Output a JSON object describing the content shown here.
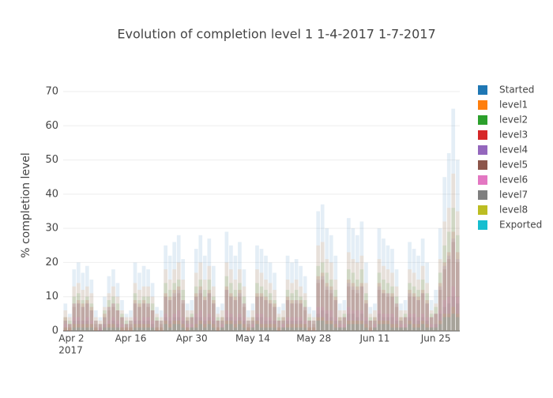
{
  "chart_data": {
    "type": "bar",
    "title": "Evolution of completion level 1 1-4-2017 1-7-2017",
    "y_label": "% completion level",
    "x": [
      "2017-04-01",
      "2017-04-02",
      "2017-04-03",
      "2017-04-04",
      "2017-04-05",
      "2017-04-06",
      "2017-04-07",
      "2017-04-08",
      "2017-04-09",
      "2017-04-10",
      "2017-04-11",
      "2017-04-12",
      "2017-04-13",
      "2017-04-14",
      "2017-04-15",
      "2017-04-16",
      "2017-04-17",
      "2017-04-18",
      "2017-04-19",
      "2017-04-20",
      "2017-04-21",
      "2017-04-22",
      "2017-04-23",
      "2017-04-24",
      "2017-04-25",
      "2017-04-26",
      "2017-04-27",
      "2017-04-28",
      "2017-04-29",
      "2017-04-30",
      "2017-05-01",
      "2017-05-02",
      "2017-05-03",
      "2017-05-04",
      "2017-05-05",
      "2017-05-06",
      "2017-05-07",
      "2017-05-08",
      "2017-05-09",
      "2017-05-10",
      "2017-05-11",
      "2017-05-12",
      "2017-05-13",
      "2017-05-14",
      "2017-05-15",
      "2017-05-16",
      "2017-05-17",
      "2017-05-18",
      "2017-05-19",
      "2017-05-20",
      "2017-05-21",
      "2017-05-22",
      "2017-05-23",
      "2017-05-24",
      "2017-05-25",
      "2017-05-26",
      "2017-05-27",
      "2017-05-28",
      "2017-05-29",
      "2017-05-30",
      "2017-05-31",
      "2017-06-01",
      "2017-06-02",
      "2017-06-03",
      "2017-06-04",
      "2017-06-05",
      "2017-06-06",
      "2017-06-07",
      "2017-06-08",
      "2017-06-09",
      "2017-06-10",
      "2017-06-11",
      "2017-06-12",
      "2017-06-13",
      "2017-06-14",
      "2017-06-15",
      "2017-06-16",
      "2017-06-17",
      "2017-06-18",
      "2017-06-19",
      "2017-06-20",
      "2017-06-21",
      "2017-06-22",
      "2017-06-23",
      "2017-06-24",
      "2017-06-25",
      "2017-06-26",
      "2017-06-27",
      "2017-06-28",
      "2017-06-29",
      "2017-06-30"
    ],
    "series": [
      {
        "name": "Started",
        "color": "#1f77b4",
        "values": [
          8,
          5,
          18,
          20,
          17,
          19,
          15,
          6,
          4,
          10,
          16,
          18,
          14,
          9,
          5,
          6,
          20,
          17,
          19,
          18,
          14,
          7,
          6,
          25,
          22,
          26,
          28,
          21,
          8,
          9,
          24,
          28,
          22,
          27,
          19,
          7,
          8,
          29,
          25,
          22,
          26,
          18,
          6,
          8,
          25,
          24,
          22,
          20,
          17,
          7,
          8,
          22,
          20,
          21,
          19,
          16,
          7,
          6,
          35,
          37,
          30,
          28,
          22,
          8,
          9,
          33,
          30,
          28,
          32,
          20,
          7,
          8,
          30,
          27,
          25,
          24,
          18,
          8,
          9,
          26,
          24,
          22,
          27,
          20,
          9,
          12,
          30,
          45,
          52,
          65,
          50
        ]
      },
      {
        "name": "level1",
        "color": "#ff7f0e",
        "values": [
          6,
          4,
          13,
          14,
          12,
          13,
          11,
          4,
          3,
          7,
          11,
          13,
          10,
          6,
          4,
          4,
          14,
          12,
          13,
          13,
          10,
          5,
          4,
          18,
          15,
          18,
          20,
          15,
          6,
          6,
          17,
          20,
          15,
          19,
          13,
          5,
          6,
          20,
          18,
          15,
          18,
          13,
          4,
          6,
          18,
          17,
          15,
          14,
          12,
          5,
          6,
          15,
          14,
          15,
          13,
          11,
          5,
          4,
          25,
          26,
          21,
          20,
          15,
          6,
          6,
          23,
          21,
          20,
          22,
          14,
          5,
          6,
          21,
          19,
          18,
          17,
          13,
          6,
          6,
          18,
          17,
          15,
          19,
          14,
          6,
          8,
          21,
          32,
          36,
          46,
          35
        ]
      },
      {
        "name": "level2",
        "color": "#2ca02c",
        "values": [
          4,
          3,
          10,
          11,
          9,
          10,
          8,
          3,
          2,
          6,
          9,
          10,
          8,
          5,
          3,
          3,
          11,
          9,
          10,
          10,
          8,
          4,
          3,
          14,
          12,
          14,
          15,
          12,
          4,
          5,
          13,
          15,
          12,
          15,
          10,
          4,
          4,
          16,
          14,
          12,
          14,
          10,
          3,
          4,
          14,
          13,
          12,
          11,
          9,
          4,
          4,
          12,
          11,
          12,
          10,
          9,
          4,
          3,
          19,
          20,
          17,
          15,
          12,
          4,
          5,
          18,
          17,
          15,
          18,
          11,
          4,
          4,
          17,
          15,
          14,
          13,
          10,
          4,
          5,
          14,
          13,
          12,
          15,
          11,
          5,
          7,
          17,
          25,
          29,
          36,
          28
        ]
      },
      {
        "name": "level3",
        "color": "#d62728",
        "values": [
          4,
          2,
          8,
          9,
          8,
          9,
          7,
          3,
          2,
          5,
          7,
          8,
          6,
          4,
          2,
          3,
          9,
          8,
          9,
          8,
          6,
          3,
          3,
          11,
          10,
          12,
          13,
          9,
          4,
          4,
          11,
          13,
          10,
          12,
          9,
          3,
          4,
          13,
          11,
          10,
          12,
          8,
          3,
          4,
          11,
          11,
          10,
          9,
          8,
          3,
          4,
          10,
          9,
          9,
          9,
          7,
          3,
          3,
          16,
          17,
          14,
          13,
          10,
          4,
          4,
          15,
          14,
          13,
          14,
          9,
          3,
          4,
          14,
          12,
          11,
          11,
          8,
          4,
          4,
          12,
          11,
          10,
          12,
          9,
          4,
          5,
          14,
          20,
          23,
          29,
          23
        ]
      },
      {
        "name": "level4",
        "color": "#9467bd",
        "values": [
          3,
          2,
          8,
          8,
          7,
          8,
          6,
          3,
          2,
          4,
          7,
          8,
          6,
          4,
          2,
          3,
          8,
          7,
          8,
          8,
          6,
          3,
          3,
          10,
          9,
          11,
          12,
          9,
          3,
          4,
          10,
          12,
          9,
          11,
          8,
          3,
          3,
          12,
          10,
          9,
          11,
          8,
          3,
          3,
          10,
          10,
          9,
          8,
          7,
          3,
          3,
          9,
          8,
          9,
          8,
          7,
          3,
          3,
          15,
          16,
          13,
          12,
          9,
          3,
          4,
          14,
          13,
          12,
          13,
          8,
          3,
          3,
          13,
          11,
          11,
          10,
          8,
          3,
          4,
          11,
          10,
          9,
          11,
          8,
          4,
          5,
          13,
          19,
          22,
          27,
          21
        ]
      },
      {
        "name": "level5",
        "color": "#8c564b",
        "values": [
          3,
          2,
          7,
          8,
          7,
          8,
          6,
          2,
          2,
          4,
          6,
          7,
          6,
          4,
          2,
          2,
          8,
          7,
          8,
          7,
          6,
          3,
          2,
          10,
          9,
          10,
          11,
          8,
          3,
          4,
          10,
          11,
          9,
          11,
          8,
          3,
          3,
          12,
          10,
          9,
          10,
          7,
          2,
          3,
          10,
          10,
          9,
          8,
          7,
          3,
          3,
          9,
          8,
          8,
          8,
          6,
          3,
          2,
          14,
          15,
          12,
          11,
          9,
          3,
          4,
          13,
          12,
          11,
          13,
          8,
          3,
          3,
          12,
          11,
          10,
          10,
          7,
          3,
          4,
          10,
          10,
          9,
          11,
          8,
          4,
          5,
          12,
          18,
          21,
          26,
          20
        ]
      },
      {
        "name": "level6",
        "color": "#e377c2",
        "values": [
          2,
          1,
          4,
          4,
          3,
          4,
          3,
          1,
          1,
          2,
          3,
          4,
          3,
          2,
          1,
          1,
          4,
          3,
          4,
          4,
          3,
          1,
          1,
          5,
          4,
          5,
          6,
          4,
          2,
          2,
          5,
          6,
          4,
          5,
          4,
          1,
          2,
          6,
          5,
          4,
          5,
          4,
          1,
          2,
          5,
          5,
          4,
          4,
          3,
          1,
          2,
          4,
          4,
          4,
          4,
          3,
          1,
          1,
          7,
          7,
          6,
          6,
          4,
          2,
          2,
          7,
          6,
          6,
          6,
          4,
          1,
          2,
          6,
          5,
          5,
          5,
          4,
          2,
          2,
          5,
          5,
          4,
          5,
          4,
          2,
          2,
          6,
          9,
          10,
          13,
          10
        ]
      },
      {
        "name": "level7",
        "color": "#7f7f7f",
        "values": [
          1,
          1,
          3,
          3,
          3,
          3,
          2,
          1,
          1,
          2,
          2,
          3,
          2,
          1,
          1,
          1,
          3,
          3,
          3,
          3,
          2,
          1,
          1,
          4,
          3,
          4,
          4,
          3,
          1,
          1,
          4,
          4,
          3,
          4,
          3,
          1,
          1,
          4,
          4,
          3,
          4,
          3,
          1,
          1,
          4,
          4,
          3,
          3,
          3,
          1,
          1,
          3,
          3,
          3,
          3,
          2,
          1,
          1,
          5,
          6,
          5,
          4,
          3,
          1,
          1,
          5,
          5,
          4,
          5,
          3,
          1,
          1,
          5,
          4,
          4,
          4,
          3,
          1,
          1,
          4,
          4,
          3,
          4,
          3,
          1,
          2,
          5,
          7,
          8,
          10,
          8
        ]
      },
      {
        "name": "level8",
        "color": "#bcbd22",
        "values": [
          1,
          1,
          2,
          2,
          2,
          2,
          2,
          1,
          0,
          1,
          2,
          2,
          1,
          1,
          1,
          1,
          2,
          2,
          2,
          2,
          1,
          1,
          1,
          3,
          2,
          3,
          3,
          2,
          1,
          1,
          2,
          3,
          2,
          3,
          2,
          1,
          1,
          3,
          3,
          2,
          3,
          2,
          1,
          1,
          3,
          2,
          2,
          2,
          2,
          1,
          1,
          2,
          2,
          2,
          2,
          2,
          1,
          1,
          4,
          4,
          3,
          3,
          2,
          1,
          1,
          3,
          3,
          3,
          3,
          2,
          1,
          1,
          3,
          3,
          3,
          2,
          2,
          1,
          1,
          3,
          2,
          2,
          3,
          2,
          1,
          1,
          3,
          5,
          5,
          7,
          5
        ]
      },
      {
        "name": "Exported",
        "color": "#17becf",
        "values": [
          0,
          0,
          1,
          1,
          1,
          1,
          1,
          0,
          0,
          1,
          1,
          1,
          1,
          0,
          0,
          0,
          1,
          1,
          1,
          1,
          1,
          0,
          0,
          2,
          1,
          2,
          2,
          1,
          0,
          1,
          1,
          2,
          1,
          2,
          1,
          0,
          1,
          2,
          2,
          1,
          2,
          1,
          0,
          1,
          2,
          1,
          1,
          1,
          1,
          0,
          1,
          1,
          1,
          1,
          1,
          1,
          0,
          0,
          3,
          3,
          2,
          2,
          1,
          1,
          1,
          2,
          2,
          2,
          2,
          1,
          0,
          1,
          2,
          2,
          2,
          1,
          1,
          1,
          1,
          2,
          1,
          1,
          2,
          1,
          1,
          1,
          2,
          4,
          4,
          5,
          4
        ]
      }
    ],
    "xlim": [
      "2017-03-31T12:00",
      "2017-06-30T12:00"
    ],
    "xticks": [
      {
        "value": "2017-04-02",
        "label": "Apr 2"
      },
      {
        "value": "2017-04-16",
        "label": "Apr 16"
      },
      {
        "value": "2017-04-30",
        "label": "Apr 30"
      },
      {
        "value": "2017-05-14",
        "label": "May 14"
      },
      {
        "value": "2017-05-28",
        "label": "May 28"
      },
      {
        "value": "2017-06-11",
        "label": "Jun 11"
      },
      {
        "value": "2017-06-25",
        "label": "Jun 25"
      }
    ],
    "x_year_label": "2017",
    "ylim": [
      0,
      70
    ],
    "yticks": [
      0,
      10,
      20,
      30,
      40,
      50,
      60,
      70
    ],
    "grid": true,
    "legend": "right"
  }
}
